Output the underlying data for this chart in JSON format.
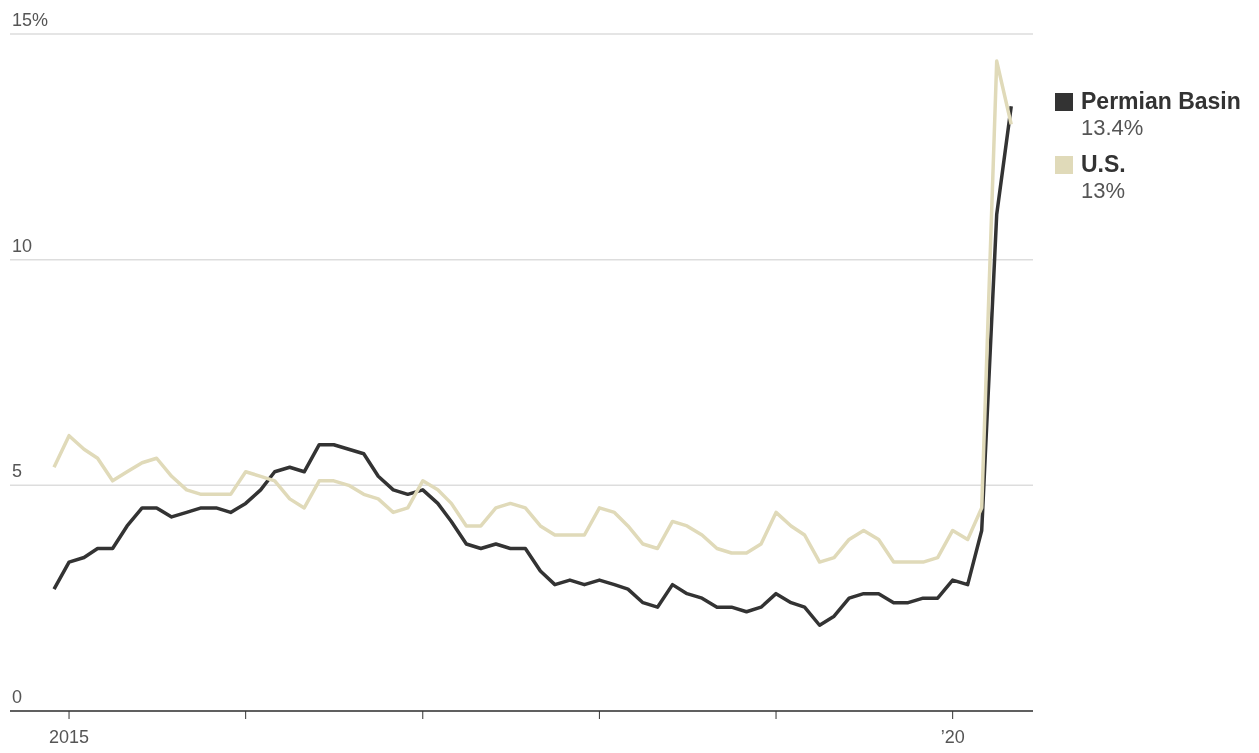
{
  "chart_data": {
    "type": "line",
    "x": [
      "2014-12",
      "2015-01",
      "2015-02",
      "2015-03",
      "2015-04",
      "2015-05",
      "2015-06",
      "2015-07",
      "2015-08",
      "2015-09",
      "2015-10",
      "2015-11",
      "2015-12",
      "2016-01",
      "2016-02",
      "2016-03",
      "2016-04",
      "2016-05",
      "2016-06",
      "2016-07",
      "2016-08",
      "2016-09",
      "2016-10",
      "2016-11",
      "2016-12",
      "2017-01",
      "2017-02",
      "2017-03",
      "2017-04",
      "2017-05",
      "2017-06",
      "2017-07",
      "2017-08",
      "2017-09",
      "2017-10",
      "2017-11",
      "2017-12",
      "2018-01",
      "2018-02",
      "2018-03",
      "2018-04",
      "2018-05",
      "2018-06",
      "2018-07",
      "2018-08",
      "2018-09",
      "2018-10",
      "2018-11",
      "2018-12",
      "2019-01",
      "2019-02",
      "2019-03",
      "2019-04",
      "2019-05",
      "2019-06",
      "2019-07",
      "2019-08",
      "2019-09",
      "2019-10",
      "2019-11",
      "2019-12",
      "2020-01",
      "2020-02",
      "2020-03",
      "2020-04",
      "2020-05"
    ],
    "series": [
      {
        "name": "Permian Basin",
        "color": "#333333",
        "values": [
          2.7,
          3.3,
          3.4,
          3.6,
          3.6,
          4.1,
          4.5,
          4.5,
          4.3,
          4.4,
          4.5,
          4.5,
          4.4,
          4.6,
          4.9,
          5.3,
          5.4,
          5.3,
          5.9,
          5.9,
          5.8,
          5.7,
          5.2,
          4.9,
          4.8,
          4.9,
          4.6,
          4.2,
          3.7,
          3.6,
          3.7,
          3.6,
          3.6,
          3.1,
          2.8,
          2.9,
          2.8,
          2.9,
          2.8,
          2.7,
          2.4,
          2.3,
          2.8,
          2.6,
          2.5,
          2.3,
          2.3,
          2.2,
          2.3,
          2.6,
          2.4,
          2.3,
          1.9,
          2.1,
          2.5,
          2.6,
          2.6,
          2.4,
          2.4,
          2.5,
          2.5,
          2.9,
          2.8,
          4.0,
          11.0,
          13.4
        ]
      },
      {
        "name": "U.S.",
        "color": "#e0dab9",
        "values": [
          5.4,
          6.1,
          5.8,
          5.6,
          5.1,
          5.3,
          5.5,
          5.6,
          5.2,
          4.9,
          4.8,
          4.8,
          4.8,
          5.3,
          5.2,
          5.1,
          4.7,
          4.5,
          5.1,
          5.1,
          5.0,
          4.8,
          4.7,
          4.4,
          4.5,
          5.1,
          4.9,
          4.6,
          4.1,
          4.1,
          4.5,
          4.6,
          4.5,
          4.1,
          3.9,
          3.9,
          3.9,
          4.5,
          4.4,
          4.1,
          3.7,
          3.6,
          4.2,
          4.1,
          3.9,
          3.6,
          3.5,
          3.5,
          3.7,
          4.4,
          4.1,
          3.9,
          3.3,
          3.4,
          3.8,
          4.0,
          3.8,
          3.3,
          3.3,
          3.3,
          3.4,
          4.0,
          3.8,
          4.5,
          14.4,
          13.0
        ]
      }
    ],
    "annotations": [
      "13.4%",
      "13%"
    ],
    "xlim": [
      "2014-09",
      "2020-06-15"
    ],
    "xticks": [
      {
        "value": "2015-01",
        "label": "2015"
      },
      {
        "value": "2016-01",
        "label": null
      },
      {
        "value": "2017-01",
        "label": null
      },
      {
        "value": "2018-01",
        "label": null
      },
      {
        "value": "2019-01",
        "label": null
      },
      {
        "value": "2020-01",
        "label": "’20"
      }
    ],
    "ylim": [
      0,
      15
    ],
    "yticks": [
      0,
      5,
      10,
      {
        "value": 15,
        "label": "15%"
      }
    ],
    "grid": "y",
    "legend": "right",
    "line_style": "solid",
    "marker": "none"
  }
}
